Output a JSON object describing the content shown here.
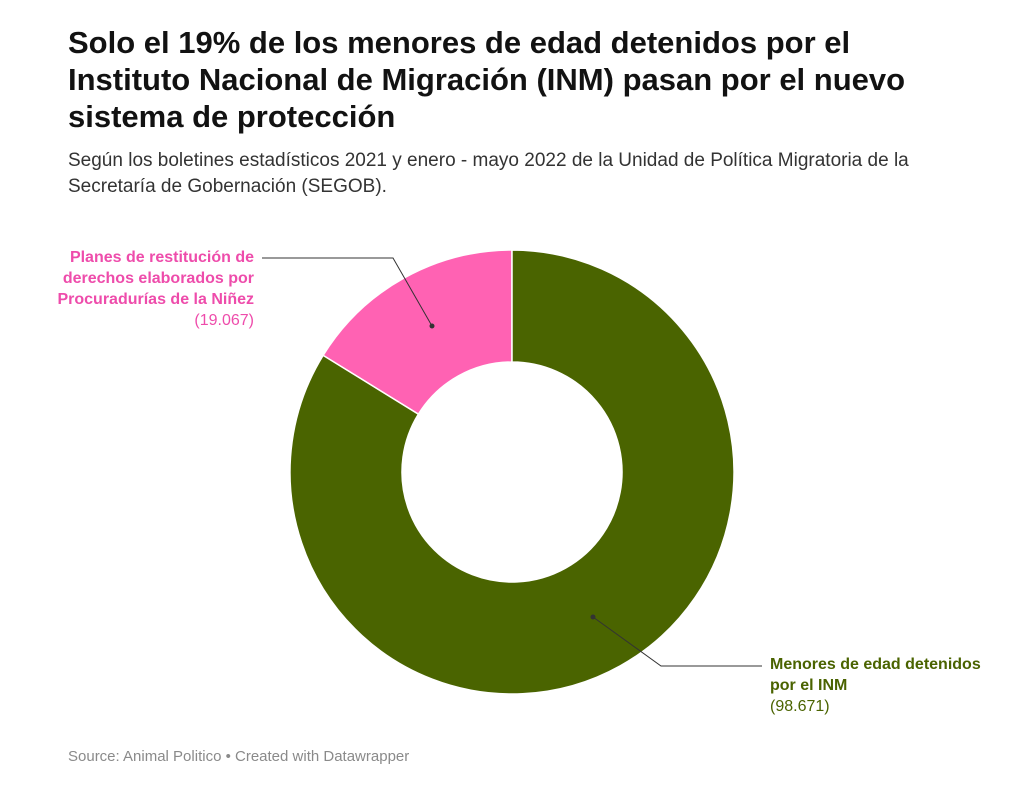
{
  "title": "Solo el 19% de los menores de edad detenidos por el Instituto Nacional de Migración (INM) pasan por el nuevo sistema de protección",
  "subtitle": "Según los boletines estadísticos 2021 y enero - mayo 2022 de la Unidad de Política Migratoria de la Secretaría de Gobernación (SEGOB).",
  "footer": {
    "source": "Source: Animal Politico",
    "separator": " • ",
    "credit": "Created with Datawrapper"
  },
  "chart_data": {
    "type": "pie",
    "donut": true,
    "categories": [
      "Planes de restitución de derechos elaborados por Procuradurías de la Niñez",
      "Menores de edad detenidos por el INM"
    ],
    "values": [
      19067,
      98671
    ],
    "value_labels": [
      "(19.067)",
      "(98.671)"
    ],
    "colors": [
      "#ff62b3",
      "#4a6400"
    ],
    "label_colors": [
      "#ee4cab",
      "#4a6300"
    ]
  }
}
